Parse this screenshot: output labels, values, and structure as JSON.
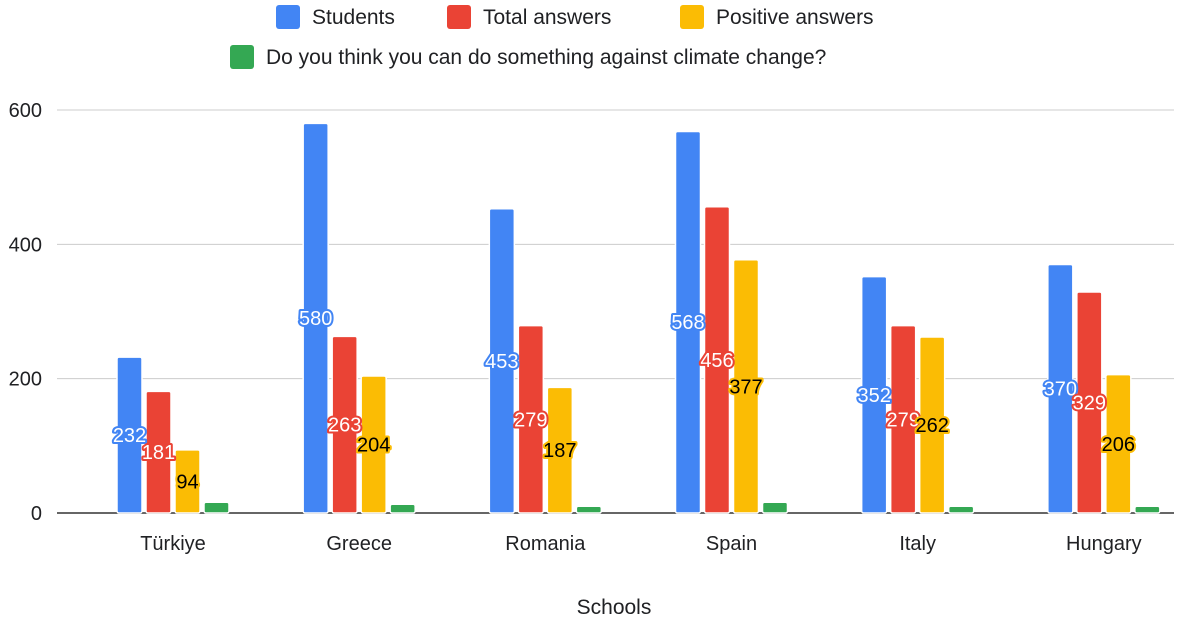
{
  "chart_data": {
    "type": "bar",
    "categories": [
      "Türkiye",
      "Greece",
      "Romania",
      "Spain",
      "Italy",
      "Hungary"
    ],
    "series": [
      {
        "name": "Students",
        "color": "#4285f4",
        "values": [
          232,
          580,
          453,
          568,
          352,
          370
        ],
        "labels": [
          "232",
          "580",
          "453",
          "568",
          "352",
          "370"
        ],
        "label_color": "#ffffff"
      },
      {
        "name": "Total answers",
        "color": "#ea4335",
        "values": [
          181,
          263,
          279,
          456,
          279,
          329
        ],
        "labels": [
          "181",
          "263",
          "279",
          "456",
          "279",
          "329"
        ],
        "label_color": "#ffffff"
      },
      {
        "name": "Positive answers",
        "color": "#fbbc04",
        "values": [
          94,
          204,
          187,
          377,
          262,
          206
        ],
        "labels": [
          "94",
          "204",
          "187",
          "377",
          "262",
          "206"
        ],
        "label_color": "#000000"
      },
      {
        "name": "Do you think you can do something against climate change?",
        "color": "#34a853",
        "values": [
          16,
          13,
          10,
          16,
          10,
          10
        ]
      }
    ],
    "xlabel": "Schools",
    "ylabel": "",
    "ylim": [
      0,
      600
    ],
    "yticks": [
      "0",
      "200",
      "400",
      "600"
    ],
    "grid": true,
    "legend_position": "top"
  }
}
